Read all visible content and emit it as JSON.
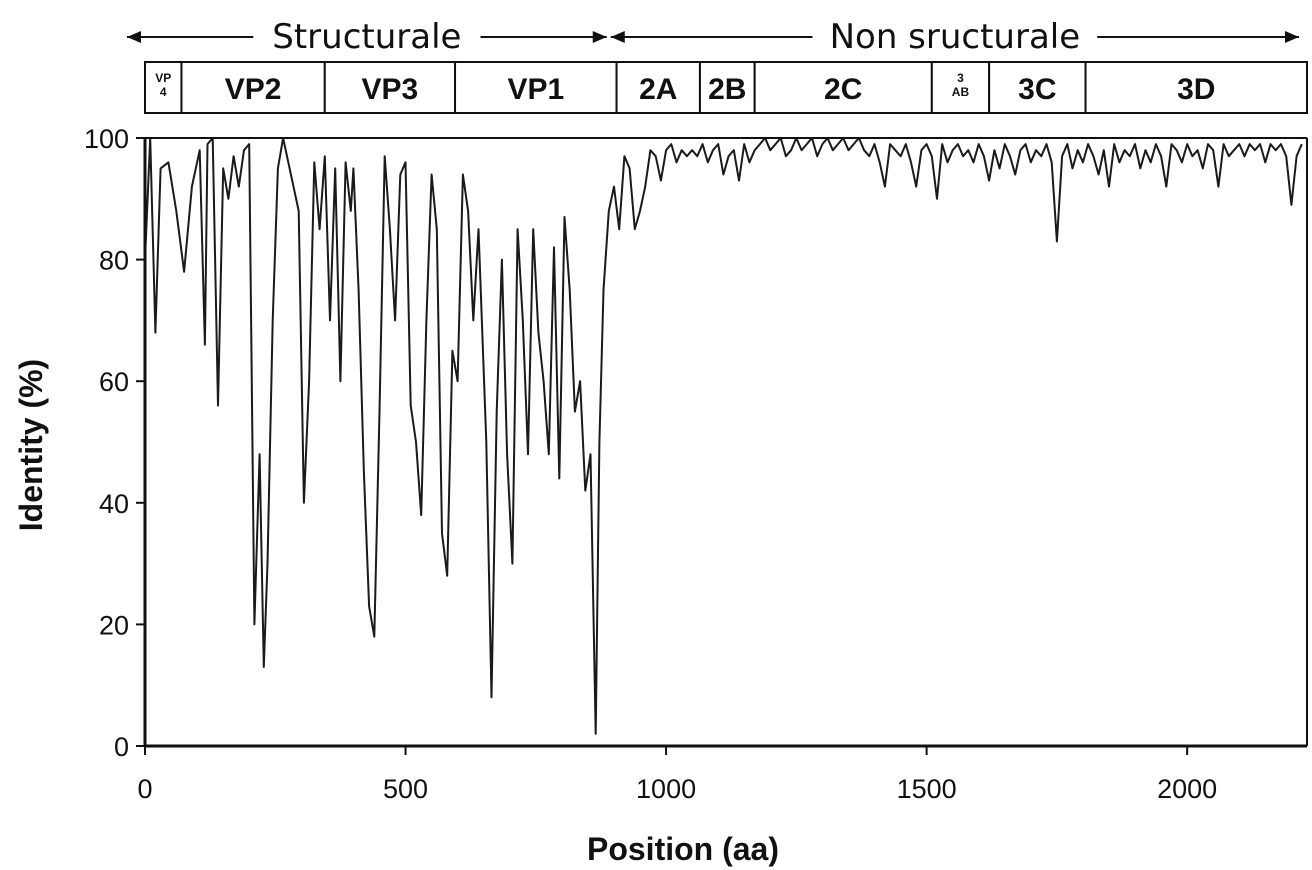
{
  "chart_data": {
    "type": "line",
    "title": "",
    "xlabel": "Position (aa)",
    "ylabel": "Identity (%)",
    "xlim": [
      0,
      2230
    ],
    "ylim": [
      0,
      100
    ],
    "xticks": [
      0,
      500,
      1000,
      1500,
      2000
    ],
    "yticks": [
      0,
      20,
      40,
      60,
      80,
      100
    ],
    "grid": false,
    "legend": "none",
    "line_color": "#1a1a1a",
    "regions": [
      {
        "label": "Structurale",
        "start": 0,
        "end": 890
      },
      {
        "label": "Non sructurale",
        "start": 890,
        "end": 2230
      }
    ],
    "segments": [
      {
        "label": "VP 4",
        "start": 0,
        "end": 70,
        "small": true
      },
      {
        "label": "VP2",
        "start": 70,
        "end": 345
      },
      {
        "label": "VP3",
        "start": 345,
        "end": 595
      },
      {
        "label": "VP1",
        "start": 595,
        "end": 905
      },
      {
        "label": "2A",
        "start": 905,
        "end": 1065
      },
      {
        "label": "2B",
        "start": 1065,
        "end": 1170
      },
      {
        "label": "2C",
        "start": 1170,
        "end": 1510
      },
      {
        "label": "3 AB",
        "start": 1510,
        "end": 1620,
        "small": true
      },
      {
        "label": "3C",
        "start": 1620,
        "end": 1805
      },
      {
        "label": "3D",
        "start": 1805,
        "end": 2230
      }
    ],
    "series": [
      {
        "x": [
          0,
          10,
          20,
          30,
          45,
          60,
          75,
          90,
          105,
          115,
          120,
          130,
          140,
          150,
          160,
          170,
          180,
          190,
          200,
          210,
          220,
          228,
          235,
          245,
          255,
          265,
          275,
          285,
          295,
          305,
          315,
          325,
          335,
          345,
          355,
          365,
          375,
          385,
          395,
          400,
          410,
          420,
          430,
          440,
          450,
          460,
          470,
          480,
          490,
          500,
          510,
          520,
          530,
          540,
          550,
          560,
          570,
          580,
          590,
          600,
          610,
          620,
          630,
          640,
          655,
          665,
          675,
          685,
          695,
          705,
          715,
          725,
          735,
          745,
          755,
          765,
          775,
          785,
          795,
          805,
          815,
          825,
          835,
          845,
          855,
          865,
          872,
          880,
          890,
          900,
          910,
          920,
          930,
          940,
          950,
          960,
          970,
          980,
          990,
          1000,
          1010,
          1020,
          1030,
          1040,
          1050,
          1060,
          1070,
          1080,
          1090,
          1100,
          1110,
          1120,
          1130,
          1140,
          1150,
          1160,
          1170,
          1180,
          1190,
          1200,
          1210,
          1220,
          1230,
          1240,
          1250,
          1260,
          1270,
          1280,
          1290,
          1300,
          1310,
          1320,
          1330,
          1340,
          1350,
          1360,
          1370,
          1380,
          1390,
          1400,
          1410,
          1420,
          1430,
          1440,
          1450,
          1460,
          1470,
          1480,
          1490,
          1500,
          1510,
          1520,
          1530,
          1540,
          1550,
          1560,
          1570,
          1580,
          1590,
          1600,
          1610,
          1620,
          1630,
          1640,
          1650,
          1660,
          1670,
          1680,
          1690,
          1700,
          1710,
          1720,
          1730,
          1740,
          1750,
          1760,
          1770,
          1780,
          1790,
          1800,
          1810,
          1820,
          1830,
          1840,
          1850,
          1860,
          1870,
          1880,
          1890,
          1900,
          1910,
          1920,
          1930,
          1940,
          1950,
          1960,
          1970,
          1980,
          1990,
          2000,
          2010,
          2020,
          2030,
          2040,
          2050,
          2060,
          2070,
          2080,
          2090,
          2100,
          2110,
          2120,
          2130,
          2140,
          2150,
          2160,
          2170,
          2180,
          2190,
          2200,
          2210,
          2220
        ],
        "y": [
          80,
          100,
          68,
          95,
          96,
          88,
          78,
          92,
          98,
          66,
          99,
          100,
          56,
          95,
          90,
          97,
          92,
          98,
          99,
          20,
          48,
          13,
          30,
          70,
          95,
          100,
          96,
          92,
          88,
          40,
          60,
          96,
          85,
          97,
          70,
          95,
          60,
          96,
          88,
          95,
          75,
          45,
          23,
          18,
          55,
          97,
          85,
          70,
          94,
          96,
          56,
          50,
          38,
          70,
          94,
          85,
          35,
          28,
          65,
          60,
          94,
          88,
          70,
          85,
          50,
          8,
          55,
          80,
          48,
          30,
          85,
          70,
          48,
          85,
          68,
          60,
          48,
          82,
          44,
          87,
          75,
          55,
          60,
          42,
          48,
          2,
          50,
          75,
          88,
          92,
          85,
          97,
          95,
          85,
          88,
          92,
          98,
          97,
          93,
          98,
          99,
          96,
          98,
          97,
          98,
          97,
          99,
          96,
          98,
          99,
          94,
          97,
          98,
          93,
          99,
          96,
          98,
          99,
          100,
          98,
          99,
          100,
          97,
          98,
          100,
          98,
          99,
          100,
          97,
          99,
          100,
          98,
          99,
          100,
          98,
          99,
          100,
          98,
          97,
          99,
          96,
          92,
          99,
          98,
          97,
          99,
          96,
          92,
          98,
          99,
          97,
          90,
          99,
          96,
          98,
          99,
          97,
          98,
          96,
          99,
          97,
          93,
          98,
          95,
          99,
          97,
          94,
          98,
          99,
          96,
          98,
          97,
          99,
          96,
          83,
          97,
          99,
          95,
          98,
          96,
          99,
          97,
          94,
          98,
          92,
          99,
          96,
          98,
          97,
          99,
          95,
          98,
          96,
          99,
          97,
          92,
          99,
          98,
          96,
          99,
          97,
          98,
          95,
          99,
          98,
          92,
          99,
          97,
          98,
          99,
          97,
          99,
          98,
          99,
          96,
          99,
          98,
          99,
          97,
          89,
          97,
          99
        ]
      }
    ]
  }
}
